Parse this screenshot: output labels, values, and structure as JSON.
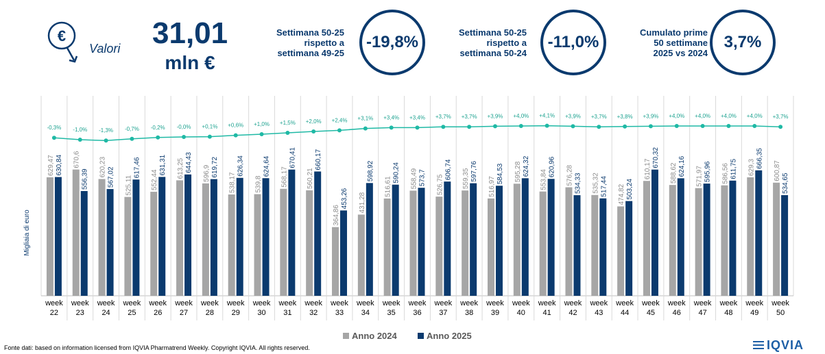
{
  "header": {
    "icon_symbol": "€",
    "valori_label": "Valori",
    "big_value": "31,01",
    "big_unit": "mln €",
    "kpis": [
      {
        "label": [
          "Settimana 50-25",
          "rispetto a",
          "settimana 49-25"
        ],
        "value": "-19,8%"
      },
      {
        "label": [
          "Settimana 50-25",
          "rispetto a",
          "settimana 50-24"
        ],
        "value": "-11,0%"
      },
      {
        "label": [
          "Cumulato prime",
          "50 settimane",
          "2025 vs 2024"
        ],
        "value": "3,7%"
      }
    ]
  },
  "chart_data": {
    "type": "bar",
    "ylabel": "Migliaia di euro",
    "categories": [
      "week 22",
      "week 23",
      "week 24",
      "week 25",
      "week 26",
      "week 27",
      "week 28",
      "week 29",
      "week 30",
      "week 31",
      "week 32",
      "week 33",
      "week 34",
      "week 35",
      "week 36",
      "week 37",
      "week 38",
      "week 39",
      "week 40",
      "week 41",
      "week 42",
      "week 43",
      "week 44",
      "week 45",
      "week 46",
      "week 47",
      "week 48",
      "week 49",
      "week 50"
    ],
    "series": [
      {
        "name": "Anno 2024",
        "color": "#a6a6a6",
        "values": [
          629.47,
          670.6,
          620.23,
          525.11,
          552.44,
          613.25,
          596.9,
          538.17,
          539.8,
          568.17,
          560.21,
          364.86,
          431.28,
          516.61,
          558.49,
          526.75,
          559.35,
          516.97,
          595.28,
          553.84,
          576.28,
          535.32,
          474.82,
          610.17,
          588.62,
          571.97,
          586.56,
          629.3,
          600.87
        ],
        "labels": [
          "629,47",
          "670,6",
          "620,23",
          "525,11",
          "552,44",
          "613,25",
          "596,9",
          "538,17",
          "539,8",
          "568,17",
          "560,21",
          "364,86",
          "431,28",
          "516,61",
          "558,49",
          "526,75",
          "559,35",
          "516,97",
          "595,28",
          "553,84",
          "576,28",
          "535,32",
          "474,82",
          "610,17",
          "588,62",
          "571,97",
          "586,56",
          "629,3",
          "600,87"
        ]
      },
      {
        "name": "Anno 2025",
        "color": "#0b3a6e",
        "values": [
          630.84,
          556.39,
          567.02,
          617.46,
          631.31,
          644.43,
          619.72,
          626.34,
          624.64,
          670.41,
          660.17,
          453.26,
          598.92,
          590.24,
          573.7,
          606.74,
          597.76,
          584.53,
          624.32,
          620.96,
          534.33,
          517.44,
          503.24,
          670.32,
          624.16,
          595.96,
          611.75,
          666.35,
          534.65
        ],
        "labels": [
          "630,84",
          "556,39",
          "567,02",
          "617,46",
          "631,31",
          "644,43",
          "619,72",
          "626,34",
          "624,64",
          "670,41",
          "660,17",
          "453,26",
          "598,92",
          "590,24",
          "573,7",
          "606,74",
          "597,76",
          "584,53",
          "624,32",
          "620,96",
          "534,33",
          "517,44",
          "503,24",
          "670,32",
          "624,16",
          "595,96",
          "611,75",
          "666,35",
          "534,65"
        ]
      }
    ],
    "cumulative_line": {
      "color": "#1fb9a5",
      "values": [
        -0.3,
        -1.0,
        -1.3,
        -0.7,
        -0.2,
        -0.0,
        0.1,
        0.6,
        1.0,
        1.5,
        2.0,
        2.4,
        3.1,
        3.4,
        3.4,
        3.7,
        3.7,
        3.9,
        4.0,
        4.1,
        3.9,
        3.7,
        3.8,
        3.9,
        4.0,
        4.0,
        4.0,
        4.0,
        3.7
      ],
      "labels": [
        "-0,3%",
        "-1,0%",
        "-1,3%",
        "-0,7%",
        "-0,2%",
        "-0,0%",
        "+0,1%",
        "+0,6%",
        "+1,0%",
        "+1,5%",
        "+2,0%",
        "+2,4%",
        "+3,1%",
        "+3,4%",
        "+3,4%",
        "+3,7%",
        "+3,7%",
        "+3,9%",
        "+4,0%",
        "+4,1%",
        "+3,9%",
        "+3,7%",
        "+3,8%",
        "+3,9%",
        "+4,0%",
        "+4,0%",
        "+4,0%",
        "+4,0%",
        "+3,7%"
      ]
    },
    "legend": [
      "Anno 2024",
      "Anno 2025"
    ],
    "legend_position": "bottom"
  },
  "footer": {
    "source": "Fonte dati: based on information licensed from IQVIA Pharmatrend Weekly. Copyright IQVIA. All rights reserved.",
    "logo": "IQVIA"
  }
}
